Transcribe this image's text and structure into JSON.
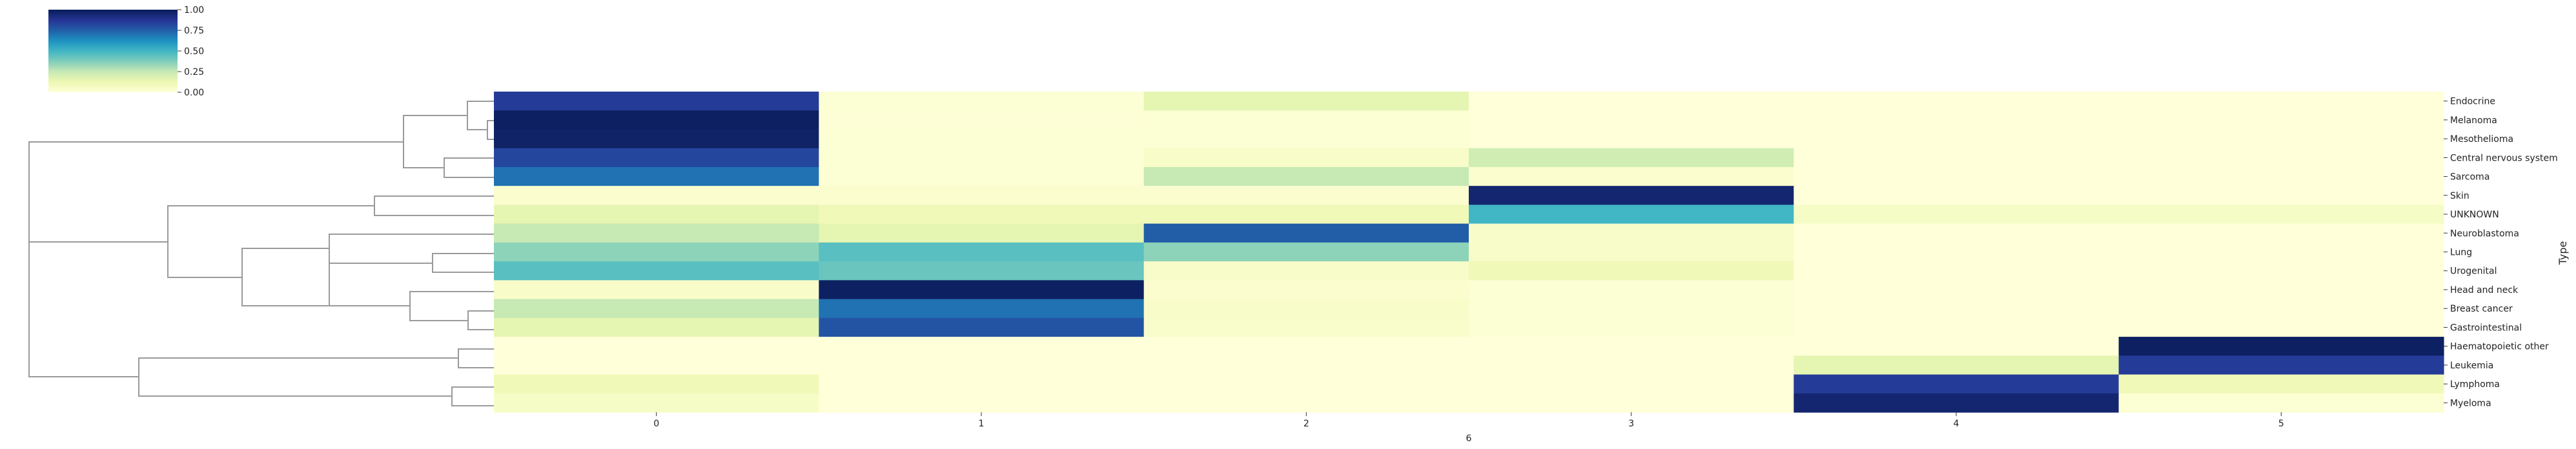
{
  "chart_data": {
    "type": "heatmap",
    "xlabel": "6",
    "ylabel": "Type",
    "columns": [
      "0",
      "1",
      "2",
      "3",
      "4",
      "5"
    ],
    "rows": [
      "Endocrine",
      "Melanoma",
      "Mesothelioma",
      "Central nervous system",
      "Sarcoma",
      "Skin",
      "UNKNOWN",
      "Neuroblastoma",
      "Lung",
      "Urogenital",
      "Head and neck",
      "Breast cancer",
      "Gastrointestinal",
      "Haematopoietic other",
      "Leukemia",
      "Lymphoma",
      "Myeloma"
    ],
    "values": [
      [
        0.85,
        0.02,
        0.15,
        0.0,
        0.0,
        0.0
      ],
      [
        0.98,
        0.01,
        0.02,
        0.0,
        0.0,
        0.0
      ],
      [
        0.97,
        0.02,
        0.02,
        0.0,
        0.0,
        0.0
      ],
      [
        0.82,
        0.02,
        0.05,
        0.22,
        0.0,
        0.0
      ],
      [
        0.7,
        0.02,
        0.25,
        0.03,
        0.0,
        0.0
      ],
      [
        0.03,
        0.03,
        0.03,
        0.95,
        0.0,
        0.0
      ],
      [
        0.15,
        0.1,
        0.1,
        0.5,
        0.06,
        0.06
      ],
      [
        0.25,
        0.15,
        0.75,
        0.05,
        0.0,
        0.0
      ],
      [
        0.35,
        0.45,
        0.35,
        0.05,
        0.0,
        0.0
      ],
      [
        0.45,
        0.42,
        0.05,
        0.1,
        0.0,
        0.0
      ],
      [
        0.05,
        0.98,
        0.03,
        0.02,
        0.0,
        0.0
      ],
      [
        0.25,
        0.7,
        0.05,
        0.02,
        0.0,
        0.0
      ],
      [
        0.15,
        0.78,
        0.04,
        0.02,
        0.0,
        0.0
      ],
      [
        0.0,
        0.0,
        0.0,
        0.0,
        0.0,
        0.98
      ],
      [
        0.0,
        0.0,
        0.0,
        0.0,
        0.15,
        0.85
      ],
      [
        0.1,
        0.0,
        0.0,
        0.0,
        0.85,
        0.1
      ],
      [
        0.06,
        0.0,
        0.0,
        0.0,
        0.95,
        0.02
      ]
    ],
    "colorbar": {
      "colormap": "YlGnBu",
      "range": [
        0.0,
        1.0
      ],
      "ticks": [
        "0.00",
        "0.25",
        "0.50",
        "0.75",
        "1.00"
      ]
    },
    "dendrogram": "row clustering shown on left"
  }
}
